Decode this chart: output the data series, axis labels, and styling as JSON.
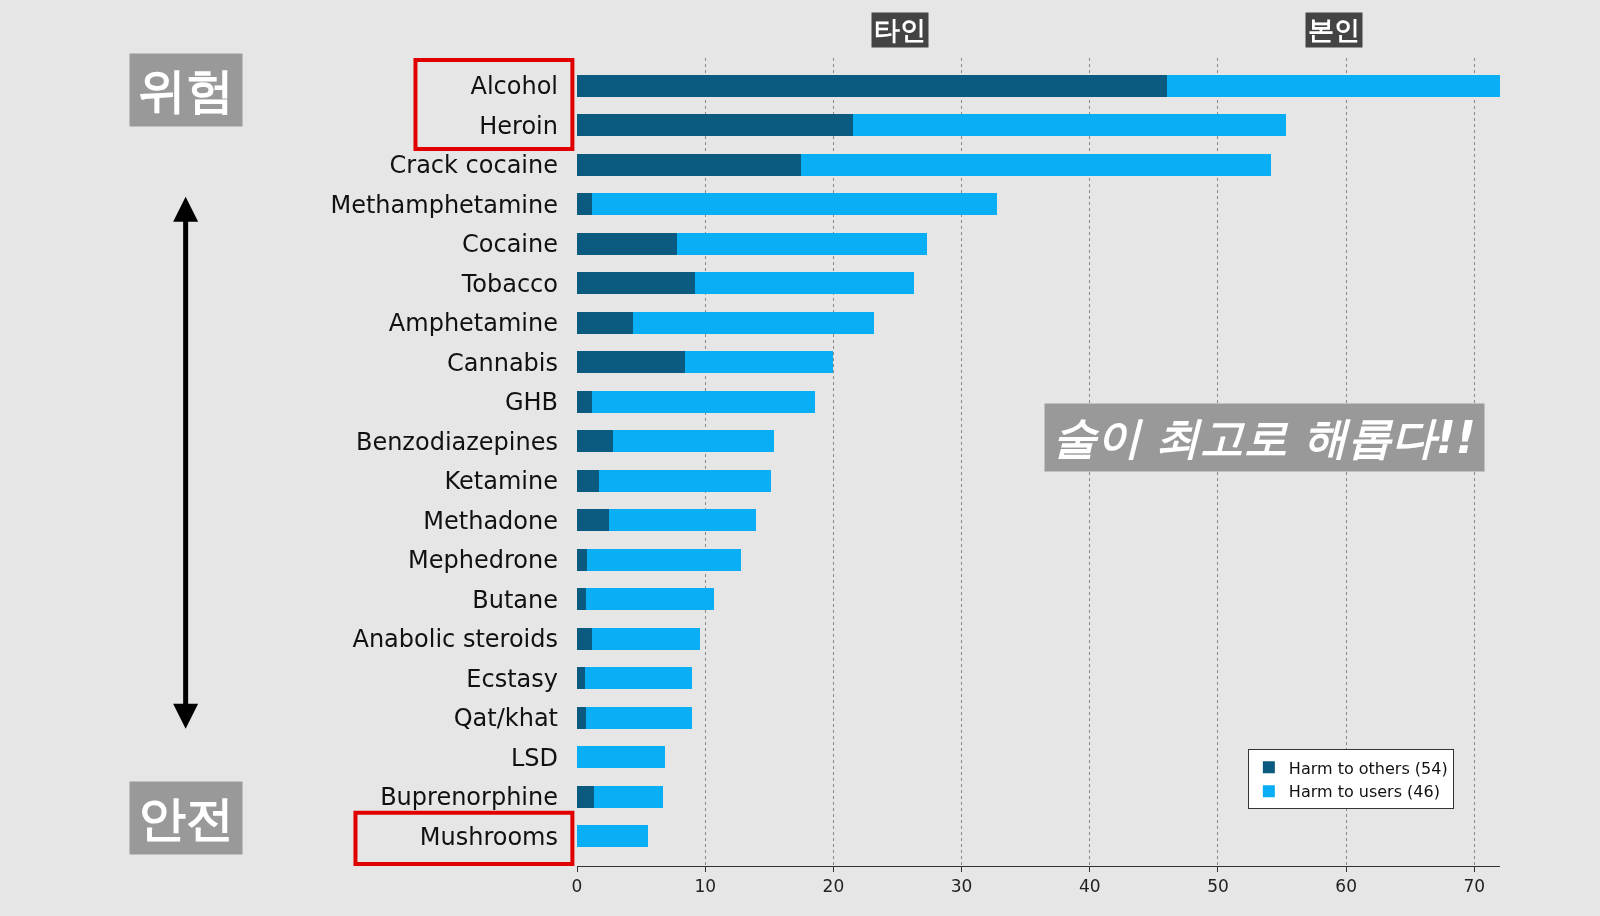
{
  "chart_data": {
    "type": "bar",
    "orientation": "horizontal",
    "stacked": true,
    "categories": [
      "Alcohol",
      "Heroin",
      "Crack cocaine",
      "Methamphetamine",
      "Cocaine",
      "Tobacco",
      "Amphetamine",
      "Cannabis",
      "GHB",
      "Benzodiazepines",
      "Ketamine",
      "Methadone",
      "Mephedrone",
      "Butane",
      "Anabolic steroids",
      "Ecstasy",
      "Qat/khat",
      "LSD",
      "Buprenorphine",
      "Mushrooms"
    ],
    "series": [
      {
        "name": "Harm to others (54)",
        "color": "#0b5a80",
        "values": [
          46,
          21.5,
          17.5,
          1.2,
          7.8,
          9.2,
          4.4,
          8.4,
          1.2,
          2.8,
          1.7,
          2.5,
          0.8,
          0.7,
          1.2,
          0.6,
          0.7,
          null,
          1.3,
          0
        ]
      },
      {
        "name": "Harm to users (46)",
        "color": "#0aaef5",
        "values": [
          26,
          33.8,
          36.6,
          31.6,
          19.5,
          17.1,
          18.8,
          11.6,
          17.4,
          12.6,
          13.4,
          11.5,
          12,
          10,
          8.4,
          8.4,
          8.3,
          6.9,
          5.4,
          5.5
        ]
      }
    ],
    "xlim": [
      0,
      72
    ],
    "xticks": [
      0,
      10,
      20,
      30,
      40,
      50,
      60,
      70
    ],
    "grid": "x",
    "legend": "bottom right",
    "annotations": [
      "타인",
      "본인",
      "위험",
      "안전",
      "술이 최고로 해롭다!!"
    ]
  }
}
